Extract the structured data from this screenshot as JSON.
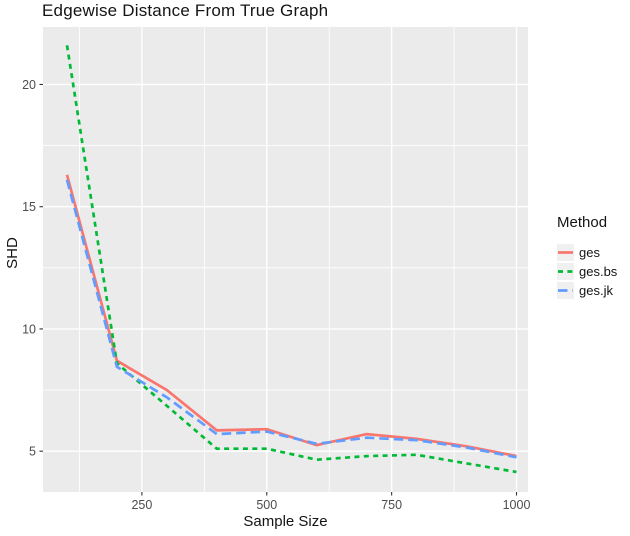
{
  "chart_data": {
    "type": "line",
    "title": "Edgewise Distance From True Graph",
    "xlabel": "Sample Size",
    "ylabel": "SHD",
    "legend_title": "Method",
    "legend_position": "right",
    "x": [
      100,
      200,
      300,
      400,
      500,
      600,
      700,
      800,
      900,
      1000
    ],
    "series": [
      {
        "name": "ges",
        "color": "#F8766D",
        "linetype": "solid",
        "values": [
          16.3,
          8.7,
          7.5,
          5.85,
          5.9,
          5.25,
          5.7,
          5.5,
          5.2,
          4.8
        ]
      },
      {
        "name": "ges.bs",
        "color": "#00BA38",
        "linetype": "dashed",
        "values": [
          21.6,
          8.6,
          6.85,
          5.1,
          5.1,
          4.65,
          4.8,
          4.85,
          4.5,
          4.15
        ]
      },
      {
        "name": "ges.jk",
        "color": "#619CFF",
        "linetype": "longdash",
        "values": [
          16.1,
          8.45,
          7.2,
          5.7,
          5.8,
          5.3,
          5.55,
          5.45,
          5.15,
          4.75
        ]
      }
    ],
    "x_ticks": [
      250,
      500,
      750,
      1000
    ],
    "x_minor_ticks": [
      125,
      375,
      625,
      875
    ],
    "y_ticks": [
      5,
      10,
      15,
      20
    ],
    "y_minor_ticks": [
      7.5,
      12.5,
      17.5
    ],
    "xlim": [
      52,
      1023
    ],
    "ylim": [
      3.33,
      22.35
    ],
    "grid": true,
    "panel_bg": "#EBEBEB",
    "grid_color": "#FFFFFF",
    "tick_color": "#333333",
    "tick_text_color": "#4D4D4D",
    "text_color": "#141414"
  }
}
